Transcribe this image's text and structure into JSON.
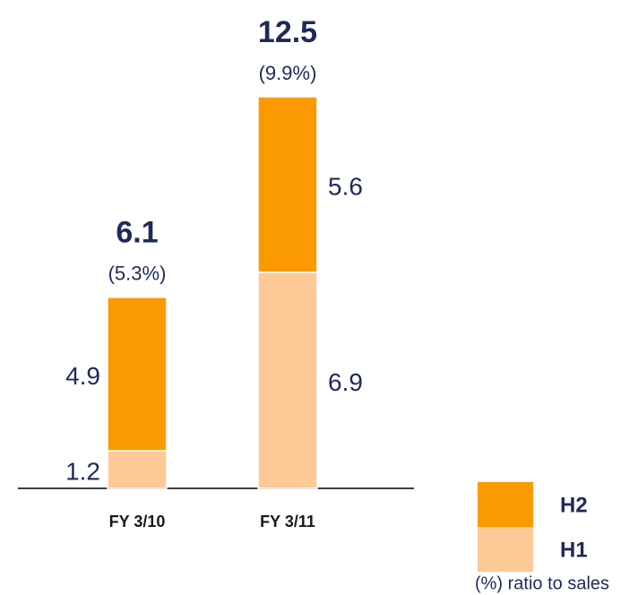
{
  "chart_data": {
    "type": "stacked_bar",
    "categories": [
      "FY 3/10",
      "FY 3/11"
    ],
    "series": [
      {
        "name": "H1",
        "color": "#fcc997",
        "values": [
          1.2,
          6.9
        ]
      },
      {
        "name": "H2",
        "color": "#fb9a00",
        "values": [
          4.9,
          5.6
        ]
      }
    ],
    "totals": [
      6.1,
      12.5
    ],
    "ratio_labels": [
      "(5.3%)",
      "(9.9%)"
    ],
    "note": "(%) ratio to sales"
  }
}
